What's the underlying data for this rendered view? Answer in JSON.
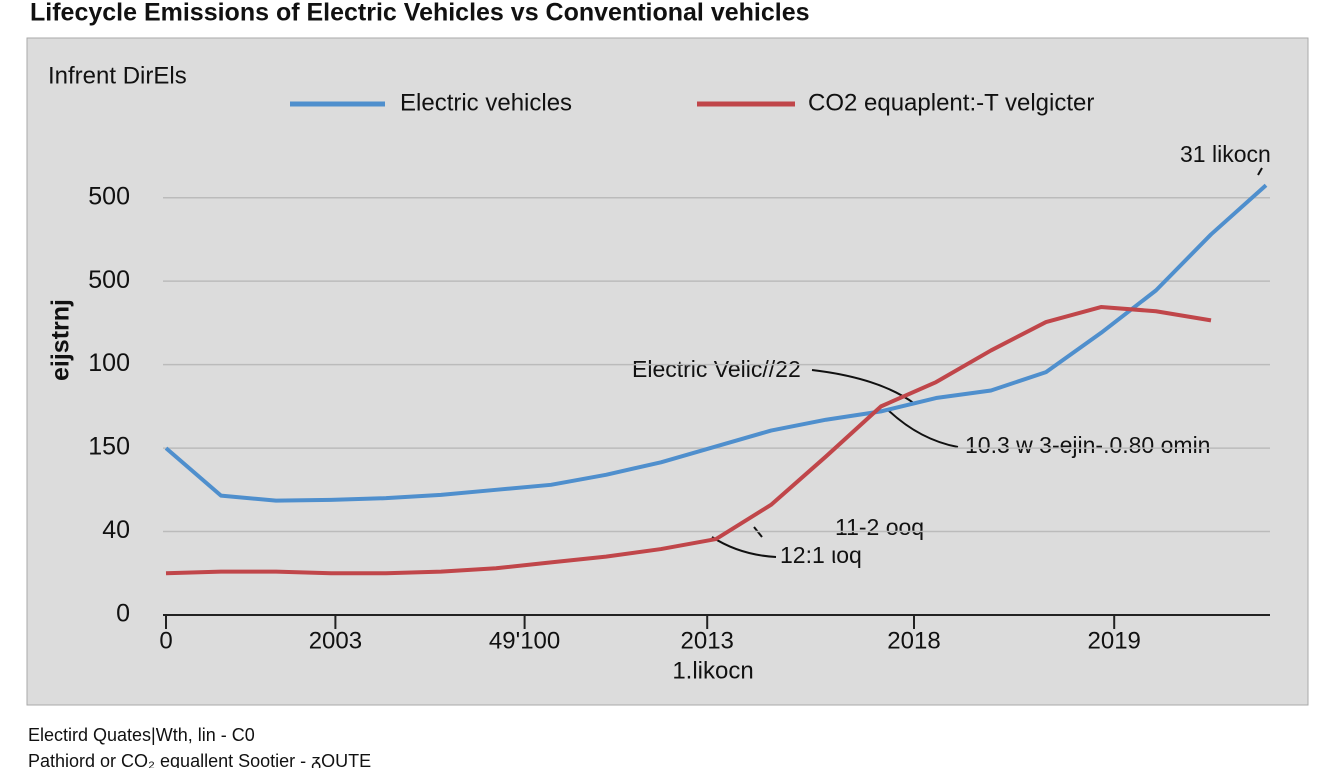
{
  "chart_data": {
    "type": "line",
    "title": "Lifecycle Emissions of Electric Vehicles vs Conventional vehicles",
    "subtitle": "Infrent DirEls",
    "y_label": "eijstrnj",
    "x_label": "1.likocn",
    "x": [
      0,
      5,
      10,
      15,
      20,
      25,
      30,
      35,
      40,
      45,
      50,
      55,
      60,
      65,
      70,
      75,
      80,
      85,
      90,
      95,
      100
    ],
    "series": [
      {
        "name": "Electric vehicles",
        "color": "#4f8fcd",
        "values": [
          2.0,
          1.43,
          1.37,
          1.38,
          1.4,
          1.44,
          1.5,
          1.56,
          1.68,
          1.83,
          2.02,
          2.21,
          2.34,
          2.44,
          2.6,
          2.69,
          2.91,
          3.38,
          3.89,
          4.56,
          5.15
        ]
      },
      {
        "name": "CO2 equaplent:-T velgicter",
        "color": "#c0464a",
        "values": [
          0.5,
          0.52,
          0.52,
          0.5,
          0.5,
          0.52,
          0.56,
          0.63,
          0.7,
          0.79,
          0.91,
          1.32,
          1.9,
          2.5,
          2.79,
          3.17,
          3.51,
          3.69,
          3.64,
          3.53,
          null
        ]
      }
    ],
    "xlim": [
      0,
      100
    ],
    "xticks": [
      {
        "value": 0,
        "label": "0"
      },
      {
        "value": 15.4,
        "label": "2003"
      },
      {
        "value": 32.6,
        "label": "49'100"
      },
      {
        "value": 49.2,
        "label": "2013"
      },
      {
        "value": 68,
        "label": "2018"
      },
      {
        "value": 86.2,
        "label": "2019"
      }
    ],
    "ylim": [
      0,
      5.5
    ],
    "yticks": [
      {
        "value": 0,
        "label": "0"
      },
      {
        "value": 1,
        "label": "40"
      },
      {
        "value": 2,
        "label": "150"
      },
      {
        "value": 3,
        "label": "100"
      },
      {
        "value": 4,
        "label": "500"
      },
      {
        "value": 5,
        "label": "500"
      }
    ],
    "grid": true,
    "annotations": [
      "Electric Velic//22",
      "10.3 w 3-ejin-.0.80 omin",
      "11-2 ooq",
      "12:1 ιoq",
      "31 likocn"
    ],
    "footer": [
      "Electird Quates|Wth, lin - C0",
      "Pathiord or CO₂ equallent Sootier - ᵹOUTE"
    ]
  }
}
